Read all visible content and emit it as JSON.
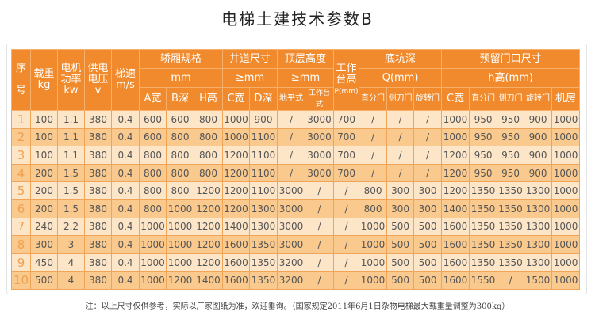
{
  "title": "电梯土建技术参数B",
  "header": {
    "seq_top": "序",
    "seq_bottom": "号",
    "load": "载重",
    "load_unit": "kg",
    "motor": "电机功率",
    "motor_unit": "kw",
    "voltage": "供电电压",
    "voltage_unit": "v",
    "speed": "梯速",
    "speed_unit": "m/s",
    "car": "轿厢规格",
    "car_unit": "mm",
    "shaft": "井道尺寸",
    "shaft_unit": "≥mm",
    "top": "顶层高度",
    "top_unit": "≥mm",
    "platform": "工作台高",
    "platform_unit": "P(mm)",
    "pit": "底坑深",
    "pit_unit": "Q(mm)",
    "door": "预留门口尺寸",
    "door_unit": "h高(mm)",
    "sub": [
      "A宽",
      "B深",
      "H高",
      "C宽",
      "D深",
      "地平式",
      "工作台式",
      "直分门",
      "侧刀门",
      "旋转门",
      "C宽",
      "直分门",
      "侧刀门",
      "旋转门",
      "机房"
    ]
  },
  "rows": [
    [
      "1",
      "100",
      "1.1",
      "380",
      "0.4",
      "600",
      "600",
      "800",
      "1000",
      "900",
      "/",
      "3000",
      "700",
      "/",
      "/",
      "/",
      "1000",
      "950",
      "950",
      "900",
      "1000"
    ],
    [
      "2",
      "100",
      "1.1",
      "380",
      "0.4",
      "600",
      "800",
      "800",
      "1000",
      "1100",
      "/",
      "3000",
      "700",
      "/",
      "/",
      "/",
      "1000",
      "950",
      "950",
      "900",
      "1000"
    ],
    [
      "3",
      "100",
      "1.1",
      "380",
      "0.4",
      "800",
      "800",
      "800",
      "1200",
      "1100",
      "/",
      "3000",
      "700",
      "/",
      "/",
      "/",
      "1200",
      "950",
      "950",
      "900",
      "1000"
    ],
    [
      "4",
      "200",
      "1.5",
      "380",
      "0.4",
      "800",
      "800",
      "800",
      "1200",
      "1100",
      "/",
      "3000",
      "700",
      "/",
      "/",
      "/",
      "1200",
      "950",
      "950",
      "900",
      "1000"
    ],
    [
      "5",
      "200",
      "1.5",
      "380",
      "0.4",
      "800",
      "800",
      "1200",
      "1200",
      "1100",
      "3000",
      "/",
      "/",
      "800",
      "300",
      "300",
      "1200",
      "1350",
      "1350",
      "1300",
      "1000"
    ],
    [
      "6",
      "200",
      "1.5",
      "380",
      "0.4",
      "800",
      "1000",
      "1200",
      "1200",
      "1300",
      "3000",
      "/",
      "/",
      "800",
      "300",
      "300",
      "1400",
      "1350",
      "1350",
      "1300",
      "1000"
    ],
    [
      "7",
      "240",
      "2.2",
      "380",
      "0.4",
      "1000",
      "1000",
      "1200",
      "1400",
      "1300",
      "3000",
      "/",
      "/",
      "1000",
      "500",
      "500",
      "1600",
      "1350",
      "1350",
      "1300",
      "1000"
    ],
    [
      "8",
      "300",
      "3",
      "380",
      "0.4",
      "1000",
      "1000",
      "1200",
      "1600",
      "1350",
      "3000",
      "/",
      "/",
      "1000",
      "500",
      "500",
      "1600",
      "1350",
      "1350",
      "1300",
      "1000"
    ],
    [
      "9",
      "450",
      "4",
      "380",
      "0.4",
      "1000",
      "1000",
      "1200",
      "1600",
      "1350",
      "3200",
      "/",
      "/",
      "1000",
      "500",
      "500",
      "1600",
      "1350",
      "1350",
      "1300",
      "1000"
    ],
    [
      "10",
      "500",
      "4",
      "380",
      "0.4",
      "1000",
      "1200",
      "1400",
      "1600",
      "1350",
      "3200",
      "/",
      "/",
      "1000",
      "500",
      "500",
      "1600",
      "1550",
      "/",
      "1500",
      "1000"
    ]
  ],
  "note": "注：以上尺寸仅供参考，实际以厂家图纸为准，欢迎垂询。（国家规定2011年6月1日杂物电梯最大载重量调整为300kg）",
  "colors": {
    "header": "#f08a2c",
    "row_light": "#fde5c8",
    "row_dark": "#f9c98e",
    "number": "#f0a050"
  }
}
